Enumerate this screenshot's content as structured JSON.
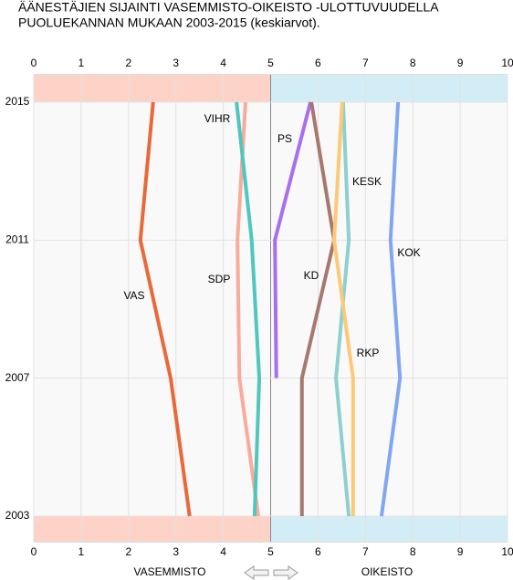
{
  "chart_data": {
    "type": "line",
    "title": [
      "ÄÄNESTÄJIEN SIJAINTI VASEMMISTO-OIKEISTO -ULOTTUVUUDELLA",
      "PUOLUEKANNAN MUKAAN 2003-2015 (keskiarvot)."
    ],
    "categories": [
      "2003",
      "2007",
      "2011",
      "2015"
    ],
    "xlim": [
      0,
      10
    ],
    "xticks": [
      0,
      1,
      2,
      3,
      4,
      5,
      6,
      7,
      8,
      9,
      10
    ],
    "axis_labels": [
      "VASEMMISTO",
      "OIKEISTO"
    ],
    "grid": true,
    "series": [
      {
        "name": "VAS",
        "color": "#e8693a",
        "values": [
          3.29,
          2.89,
          2.25,
          2.52
        ]
      },
      {
        "name": "SDP",
        "color": "#f9ab9b",
        "values": [
          4.74,
          4.34,
          4.3,
          4.47
        ]
      },
      {
        "name": "VIHR",
        "color": "#4fc7bd",
        "values": [
          4.66,
          4.76,
          4.6,
          4.28
        ]
      },
      {
        "name": "PS",
        "color": "#a86ff0",
        "values": [
          null,
          5.12,
          5.09,
          5.84
        ]
      },
      {
        "name": "KD",
        "color": "#a7786f",
        "values": [
          5.66,
          5.66,
          6.34,
          5.86
        ]
      },
      {
        "name": "KESK",
        "color": "#8dd0cf",
        "values": [
          6.65,
          6.38,
          6.65,
          6.53
        ]
      },
      {
        "name": "RKP",
        "color": "#fcc978",
        "values": [
          6.74,
          6.74,
          6.34,
          6.51
        ]
      },
      {
        "name": "KOK",
        "color": "#82a7f2",
        "values": [
          7.34,
          7.73,
          7.53,
          7.69
        ]
      }
    ]
  }
}
